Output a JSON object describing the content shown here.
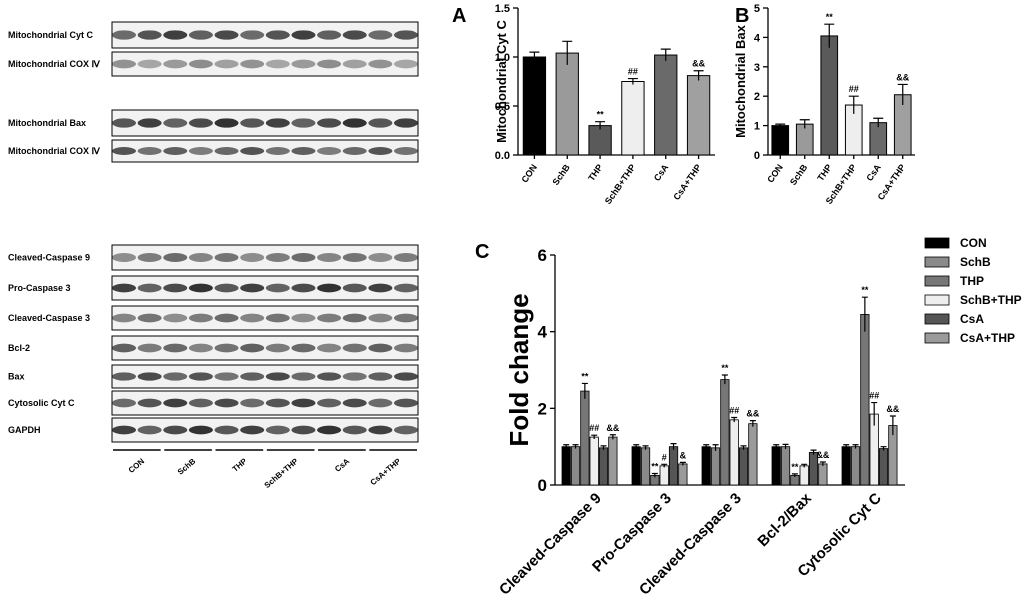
{
  "blots": {
    "groups": [
      {
        "rows": [
          "Mitochondrial Cyt C",
          "Mitochondrial COX Ⅳ",
          "Mitochondrial Bax",
          "Mitochondrial COX Ⅳ"
        ]
      },
      {
        "rows": [
          "Cleaved-Caspase 9",
          "Pro-Caspase 3",
          "Cleaved-Caspase 3",
          "Bcl-2",
          "Bax",
          "Cytosolic Cyt C",
          "GAPDH"
        ]
      }
    ],
    "lanes": [
      "CON",
      "SchB",
      "THP",
      "SchB+THP",
      "CsA",
      "CsA+THP"
    ]
  },
  "chart_data": [
    {
      "type": "bar",
      "panel": "A",
      "ylabel": "Mitochondrial Cyt C",
      "categories": [
        "CON",
        "SchB",
        "THP",
        "SchB+THP",
        "CsA",
        "CsA+THP"
      ],
      "values": [
        1.0,
        1.04,
        0.3,
        0.75,
        1.02,
        0.81
      ],
      "errors": [
        0.05,
        0.12,
        0.04,
        0.03,
        0.06,
        0.05
      ],
      "annotations": [
        null,
        null,
        "**",
        "##",
        null,
        "&&"
      ],
      "colors": [
        "#000000",
        "#9a9a9a",
        "#5a5a5a",
        "#eeeeee",
        "#6a6a6a",
        "#a0a0a0"
      ],
      "ylim": [
        0,
        1.5
      ],
      "yticks": [
        {
          "value": 0,
          "label": "0.0"
        },
        {
          "value": 0.5,
          "label": "0.5"
        },
        {
          "value": 1,
          "label": "1.0"
        },
        {
          "value": 1.5,
          "label": "1.5"
        }
      ]
    },
    {
      "type": "bar",
      "panel": "B",
      "ylabel": "Mitochondrial  Bax",
      "categories": [
        "CON",
        "SchB",
        "THP",
        "SchB+THP",
        "CsA",
        "CsA+THP"
      ],
      "values": [
        1.0,
        1.05,
        4.05,
        1.7,
        1.1,
        2.05
      ],
      "errors": [
        0.05,
        0.15,
        0.4,
        0.3,
        0.15,
        0.35
      ],
      "annotations": [
        null,
        null,
        "**",
        "##",
        null,
        "&&"
      ],
      "colors": [
        "#000000",
        "#9a9a9a",
        "#5a5a5a",
        "#eeeeee",
        "#6a6a6a",
        "#a0a0a0"
      ],
      "ylim": [
        0,
        5
      ],
      "yticks": [
        0,
        1,
        2,
        3,
        4,
        5
      ]
    },
    {
      "type": "grouped_bar",
      "panel": "C",
      "ylabel": "Fold change",
      "categories": [
        "Cleaved-Caspase 9",
        "Pro-Caspase 3",
        "Cleaved-Caspase 3",
        "Bcl-2/Bax",
        "Cytosolic Cyt C"
      ],
      "series": [
        {
          "name": "CON",
          "color": "#000000",
          "values": [
            1,
            1,
            1,
            1,
            1
          ],
          "errors": [
            0.05,
            0.05,
            0.05,
            0.05,
            0.05
          ],
          "annotations": [
            null,
            null,
            null,
            null,
            null
          ]
        },
        {
          "name": "SchB",
          "color": "#8a8a8a",
          "values": [
            1,
            0.97,
            0.97,
            1,
            1
          ],
          "errors": [
            0.05,
            0.05,
            0.08,
            0.06,
            0.05
          ],
          "annotations": [
            null,
            null,
            null,
            null,
            null
          ]
        },
        {
          "name": "THP",
          "color": "#777777",
          "values": [
            2.45,
            0.25,
            2.75,
            0.25,
            4.45
          ],
          "errors": [
            0.2,
            0.05,
            0.12,
            0.04,
            0.45
          ],
          "annotations": [
            "**",
            "**",
            "**",
            "**",
            "**"
          ]
        },
        {
          "name": "SchB+THP",
          "color": "#eeeeee",
          "values": [
            1.25,
            0.5,
            1.7,
            0.5,
            1.85
          ],
          "errors": [
            0.05,
            0.04,
            0.06,
            0.04,
            0.3
          ],
          "annotations": [
            "##",
            "#",
            "##",
            null,
            "##"
          ]
        },
        {
          "name": "CsA",
          "color": "#555555",
          "values": [
            0.97,
            1.0,
            0.97,
            0.85,
            0.95
          ],
          "errors": [
            0.05,
            0.08,
            0.05,
            0.06,
            0.05
          ],
          "annotations": [
            null,
            null,
            null,
            null,
            null
          ]
        },
        {
          "name": "CsA+THP",
          "color": "#9a9a9a",
          "values": [
            1.25,
            0.55,
            1.6,
            0.55,
            1.55
          ],
          "errors": [
            0.06,
            0.04,
            0.08,
            0.05,
            0.25
          ],
          "annotations": [
            "&&",
            "&",
            "&&",
            "&&",
            "&&"
          ]
        }
      ],
      "ylim": [
        0,
        6
      ],
      "yticks": [
        0,
        2,
        4,
        6
      ],
      "legend": "right"
    }
  ]
}
